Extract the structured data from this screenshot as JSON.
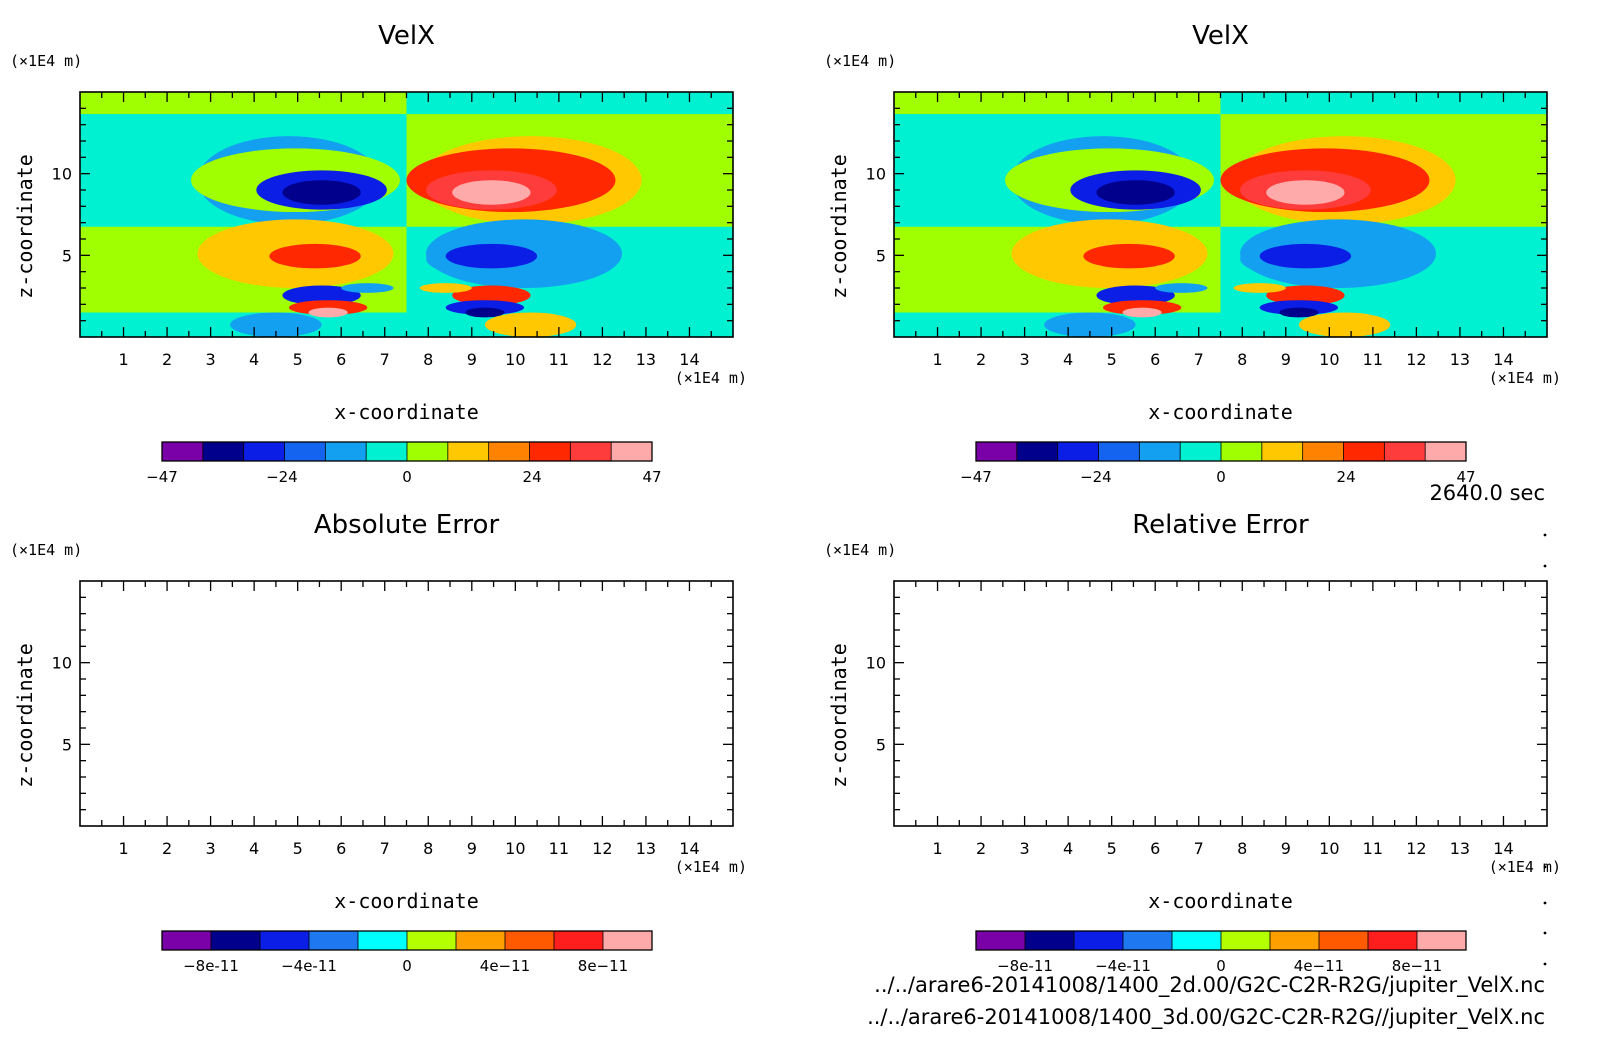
{
  "time_label": "2640.0 sec",
  "files": [
    "../../arare6-20141008/1400_2d.00/G2C-C2R-R2G/jupiter_VelX.nc",
    "../../arare6-20141008/1400_3d.00/G2C-C2R-R2G//jupiter_VelX.nc"
  ],
  "colors": {
    "palette10": [
      "#7a00a8",
      "#00008c",
      "#0a1ee6",
      "#1464f0",
      "#14a0f0",
      "#00f0d2",
      "#a0ff00",
      "#ffc800",
      "#ff8200",
      "#ff2800",
      "#ff3c3c",
      "#ffaaaa"
    ],
    "palette_err": [
      "#7a00a8",
      "#00008c",
      "#0a1ee6",
      "#1e78f0",
      "#00ffff",
      "#b4ff00",
      "#ffa000",
      "#ff5a00",
      "#ff1e1e",
      "#ffaaaa"
    ]
  },
  "chart_data": [
    {
      "type": "heatmap",
      "title": "VelX",
      "xlabel": "x-coordinate",
      "ylabel": "z-coordinate",
      "x_unit": "(×1E4 m)",
      "y_unit": "(×1E4 m)",
      "xlim": [
        0,
        15
      ],
      "ylim": [
        0,
        15
      ],
      "x_ticks": [
        "1",
        "2",
        "3",
        "4",
        "5",
        "6",
        "7",
        "8",
        "9",
        "10",
        "11",
        "12",
        "13",
        "14"
      ],
      "y_ticks": [
        "5",
        "10"
      ],
      "colorbar": {
        "min": -47,
        "max": 47,
        "labels": [
          "-47",
          "-24",
          "0",
          "24",
          "47"
        ]
      }
    },
    {
      "type": "heatmap",
      "title": "VelX",
      "xlabel": "x-coordinate",
      "ylabel": "z-coordinate",
      "x_unit": "(×1E4 m)",
      "y_unit": "(×1E4 m)",
      "xlim": [
        0,
        15
      ],
      "ylim": [
        0,
        15
      ],
      "x_ticks": [
        "1",
        "2",
        "3",
        "4",
        "5",
        "6",
        "7",
        "8",
        "9",
        "10",
        "11",
        "12",
        "13",
        "14"
      ],
      "y_ticks": [
        "5",
        "10"
      ],
      "colorbar": {
        "min": -47,
        "max": 47,
        "labels": [
          "-47",
          "-24",
          "0",
          "24",
          "47"
        ]
      }
    },
    {
      "type": "heatmap",
      "title": "Absolute Error",
      "xlabel": "x-coordinate",
      "ylabel": "z-coordinate",
      "x_unit": "(×1E4 m)",
      "y_unit": "(×1E4 m)",
      "xlim": [
        0,
        15
      ],
      "ylim": [
        0,
        15
      ],
      "x_ticks": [
        "1",
        "2",
        "3",
        "4",
        "5",
        "6",
        "7",
        "8",
        "9",
        "10",
        "11",
        "12",
        "13",
        "14"
      ],
      "y_ticks": [
        "5",
        "10"
      ],
      "colorbar": {
        "min": -1e-10,
        "max": 1e-10,
        "labels": [
          "-8e-11",
          "-4e-11",
          "0",
          "4e-11",
          "8e-11"
        ]
      }
    },
    {
      "type": "heatmap",
      "title": "Relative Error",
      "xlabel": "x-coordinate",
      "ylabel": "z-coordinate",
      "x_unit": "(×1E4 m)",
      "y_unit": "(×1E4 m)",
      "xlim": [
        0,
        15
      ],
      "ylim": [
        0,
        15
      ],
      "x_ticks": [
        "1",
        "2",
        "3",
        "4",
        "5",
        "6",
        "7",
        "8",
        "9",
        "10",
        "11",
        "12",
        "13",
        "14"
      ],
      "y_ticks": [
        "5",
        "10"
      ],
      "colorbar": {
        "min": -1e-10,
        "max": 1e-10,
        "labels": [
          "-8e-11",
          "-4e-11",
          "0",
          "4e-11",
          "8e-11"
        ]
      }
    }
  ]
}
